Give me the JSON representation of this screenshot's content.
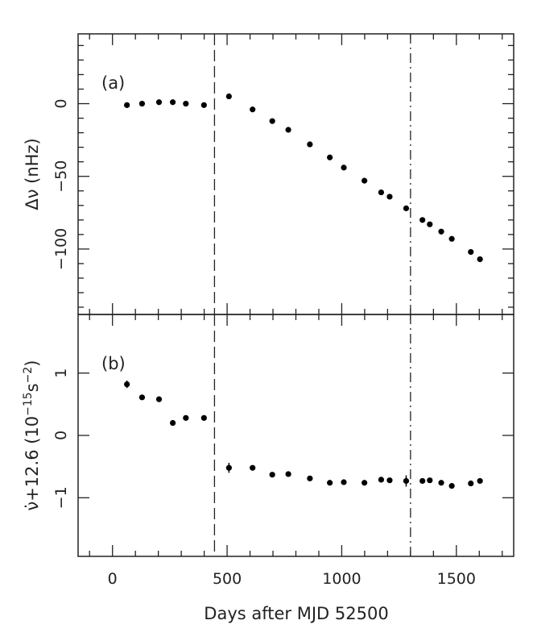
{
  "chart_data": [
    {
      "type": "scatter",
      "panel_label": "(a)",
      "ylabel": "Δν (nHz)",
      "xlim": [
        -150,
        1750
      ],
      "ylim": [
        -145,
        48
      ],
      "yticks_major": [
        0,
        -50,
        -100
      ],
      "ytick_labels": [
        "0",
        "−50",
        "−100"
      ],
      "ytick_minor_step": 10,
      "x": [
        63,
        129,
        203,
        263,
        320,
        399,
        508,
        611,
        697,
        767,
        861,
        948,
        1009,
        1099,
        1172,
        1209,
        1281,
        1352,
        1384,
        1434,
        1480,
        1563,
        1603
      ],
      "y": [
        -1,
        0,
        1,
        1,
        0,
        -1,
        5,
        -4,
        -12,
        -18,
        -28,
        -37,
        -44,
        -53,
        -61,
        -64,
        -72,
        -80,
        -83,
        -88,
        -93,
        -102,
        -107
      ]
    },
    {
      "type": "scatter",
      "panel_label": "(b)",
      "ylabel_parts": {
        "main": "ν̇+12.6 (10",
        "sup1": "−15",
        "mid": "s",
        "sup2": "−2",
        "end": ")"
      },
      "xlim": [
        -150,
        1750
      ],
      "ylim": [
        -1.94,
        1.94
      ],
      "yticks_major": [
        1,
        0,
        -1
      ],
      "ytick_labels": [
        "1",
        "0",
        "−1"
      ],
      "x": [
        63,
        129,
        203,
        263,
        320,
        399,
        508,
        611,
        697,
        767,
        861,
        948,
        1009,
        1099,
        1172,
        1209,
        1281,
        1352,
        1384,
        1434,
        1480,
        1563,
        1603
      ],
      "y": [
        0.82,
        0.61,
        0.58,
        0.2,
        0.28,
        0.28,
        -0.52,
        -0.52,
        -0.63,
        -0.62,
        -0.69,
        -0.76,
        -0.75,
        -0.76,
        -0.71,
        -0.72,
        -0.73,
        -0.73,
        -0.72,
        -0.76,
        -0.81,
        -0.77,
        -0.73
      ],
      "yerr": [
        0.06,
        0,
        0,
        0,
        0,
        0,
        0.08,
        0,
        0,
        0,
        0,
        0,
        0,
        0,
        0,
        0,
        0.09,
        0,
        0,
        0,
        0,
        0,
        0
      ]
    }
  ],
  "shared": {
    "xlabel": "Days after MJD 52500",
    "xticks_major": [
      0,
      500,
      1000,
      1500
    ],
    "xtick_labels": [
      "0",
      "500",
      "1000",
      "1500"
    ],
    "xtick_minor_step": 100,
    "vlines": [
      {
        "x": 445,
        "style": "dashed"
      },
      {
        "x": 1300,
        "style": "dash-dot"
      }
    ],
    "point_color": "#000000"
  }
}
